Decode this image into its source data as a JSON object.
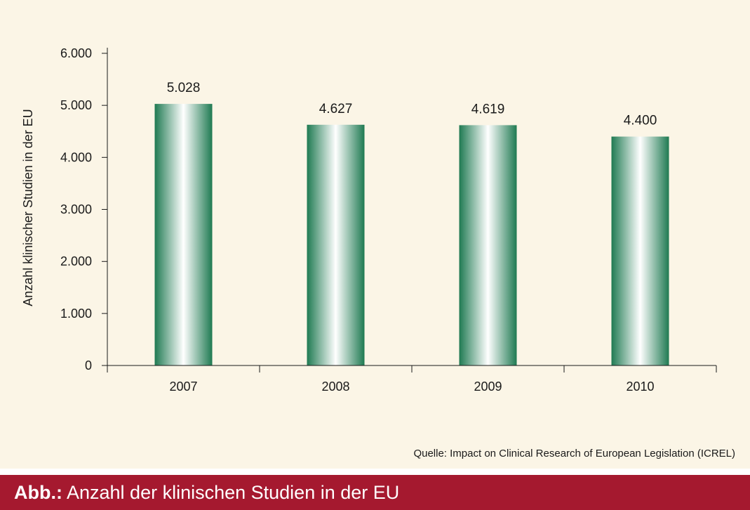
{
  "chart_data": {
    "type": "bar",
    "categories": [
      "2007",
      "2008",
      "2009",
      "2010"
    ],
    "values": [
      5028,
      4627,
      4619,
      4400
    ],
    "value_labels": [
      "5.028",
      "4.627",
      "4.619",
      "4.400"
    ],
    "ylabel": "Anzahl klinischer Studien in der EU",
    "xlabel": "",
    "ylim": [
      0,
      6000
    ],
    "yticks": [
      0,
      1000,
      2000,
      3000,
      4000,
      5000,
      6000
    ],
    "ytick_labels": [
      "0",
      "1.000",
      "2.000",
      "3.000",
      "4.000",
      "5.000",
      "6.000"
    ],
    "grid": false,
    "bar_color": "#1f7a52",
    "bar_highlight": "#ffffff"
  },
  "source": "Quelle: Impact on Clinical Research of European Legislation (ICREL)",
  "caption": {
    "prefix": "Abb.:",
    "text": "Anzahl der klinischen Studien in der EU"
  },
  "colors": {
    "background": "#fbf5e6",
    "caption_bar": "#a5192f"
  }
}
